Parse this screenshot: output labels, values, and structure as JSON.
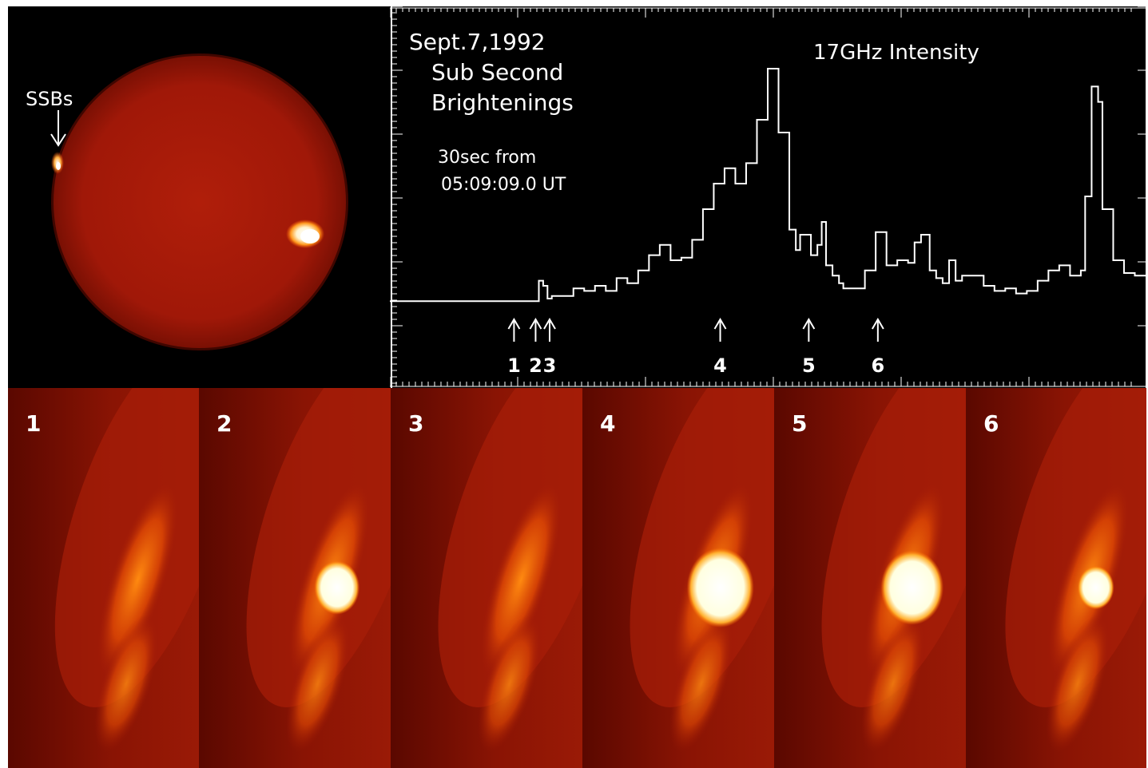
{
  "sun_image": {
    "annotation_label": "SSBs"
  },
  "chart_data": {
    "type": "line",
    "annotations": [
      "Sept.7,1992",
      "Sub Second",
      "Brightenings",
      "30sec from",
      "05:09:09.0 UT",
      "17GHz Intensity"
    ],
    "x_unit": "sec (relative)",
    "xlim": [
      -5,
      30
    ],
    "ylim": [
      0,
      1
    ],
    "series": [
      {
        "x": [
          -5,
          1.5,
          1.9,
          2.1,
          2.3,
          2.5,
          3.0,
          3.5,
          4.0,
          4.5,
          5.0,
          5.5,
          6.0,
          6.5,
          7.0,
          7.5,
          8.0,
          8.5,
          9.0,
          9.5,
          10.0,
          10.5,
          11.0,
          11.5,
          12.0,
          12.5,
          13.0,
          13.5,
          13.8,
          14.0,
          14.2,
          14.5,
          14.8,
          15.0,
          15.2,
          15.5,
          15.8,
          16.0,
          16.5,
          17.0,
          17.5,
          18.0,
          18.5,
          19.0,
          19.3,
          19.6,
          20.0,
          20.3,
          20.6,
          20.9,
          21.2,
          21.5,
          22.0,
          22.5,
          23.0,
          23.5,
          24.0,
          24.5,
          25.0,
          25.5,
          26.0,
          26.5,
          27.0,
          27.2,
          27.5,
          27.8,
          28.0,
          28.5,
          29.0,
          29.5,
          30.0
        ],
        "y": [
          0.04,
          0.04,
          0.12,
          0.1,
          0.05,
          0.06,
          0.06,
          0.09,
          0.08,
          0.1,
          0.08,
          0.13,
          0.11,
          0.16,
          0.22,
          0.26,
          0.2,
          0.21,
          0.28,
          0.4,
          0.5,
          0.56,
          0.5,
          0.58,
          0.75,
          0.95,
          0.7,
          0.32,
          0.24,
          0.3,
          0.3,
          0.22,
          0.26,
          0.35,
          0.18,
          0.14,
          0.11,
          0.09,
          0.09,
          0.16,
          0.31,
          0.18,
          0.2,
          0.19,
          0.27,
          0.3,
          0.16,
          0.13,
          0.11,
          0.2,
          0.12,
          0.14,
          0.14,
          0.1,
          0.08,
          0.09,
          0.07,
          0.08,
          0.12,
          0.16,
          0.18,
          0.14,
          0.16,
          0.45,
          0.88,
          0.82,
          0.4,
          0.2,
          0.15,
          0.14,
          0.14
        ]
      }
    ],
    "markers": [
      {
        "label": "1",
        "x": 0.75
      },
      {
        "label": "2",
        "x": 1.75
      },
      {
        "label": "3",
        "x": 2.4
      },
      {
        "label": "4",
        "x": 10.3
      },
      {
        "label": "5",
        "x": 14.4
      },
      {
        "label": "6",
        "x": 17.6
      }
    ]
  },
  "frames": [
    {
      "label": "1",
      "burst": 0.0
    },
    {
      "label": "2",
      "burst": 0.5
    },
    {
      "label": "3",
      "burst": 0.0
    },
    {
      "label": "4",
      "burst": 1.0
    },
    {
      "label": "5",
      "burst": 0.9
    },
    {
      "label": "6",
      "burst": 0.3
    }
  ],
  "colors": {
    "background": "#000000",
    "disk": "#a61a08",
    "limb": "#5a0a00",
    "hot": "#ffffff",
    "glow": "#ff9a00",
    "trace": "#ffffff"
  }
}
